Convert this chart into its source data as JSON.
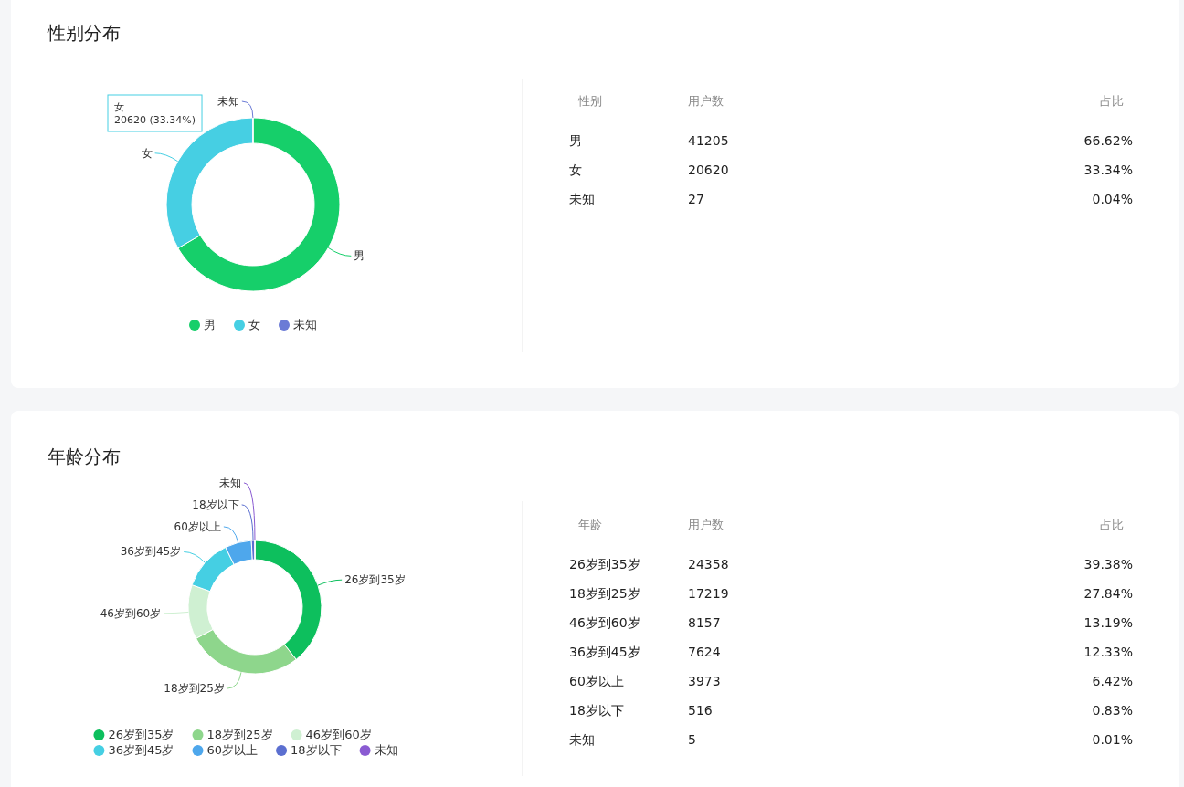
{
  "chart_data": [
    {
      "type": "donut",
      "title": "性别分布",
      "categories": [
        "男",
        "女",
        "未知"
      ],
      "values": [
        66.62,
        33.34,
        0.04
      ],
      "colors": [
        "#16cf6a",
        "#46cfe3",
        "#6b7bd6"
      ],
      "legend": "bottom",
      "annotations": [
        "女\n20620 (33.34%)"
      ]
    },
    {
      "type": "other",
      "annotations": [
        "性别",
        "用户数",
        "占比",
        "男",
        "41205",
        "66.62%",
        "女",
        "20620",
        "33.34%",
        "未知",
        "27",
        "0.04%"
      ]
    },
    {
      "type": "donut",
      "title": "年龄分布",
      "categories": [
        "26岁到35岁",
        "18岁到25岁",
        "46岁到60岁",
        "36岁到45岁",
        "60岁以上",
        "18岁以下",
        "未知"
      ],
      "values": [
        39.38,
        27.84,
        13.19,
        12.33,
        6.42,
        0.83,
        0.01
      ],
      "colors": [
        "#0dbf5d",
        "#8ed68c",
        "#cff0d2",
        "#45cfe3",
        "#4ea7ec",
        "#5b6fd0",
        "#8a5bd2"
      ],
      "legend": "bottom"
    },
    {
      "type": "other",
      "annotations": [
        "年龄",
        "用户数",
        "占比",
        "26岁到35岁",
        "24358",
        "39.38%",
        "18岁到25岁",
        "17219",
        "27.84%",
        "46岁到60岁",
        "8157",
        "13.19%",
        "36岁到45岁",
        "7624",
        "12.33%",
        "60岁以上",
        "3973",
        "6.42%",
        "18岁以下",
        "516",
        "0.83%",
        "未知",
        "5",
        "0.01%"
      ]
    }
  ]
}
